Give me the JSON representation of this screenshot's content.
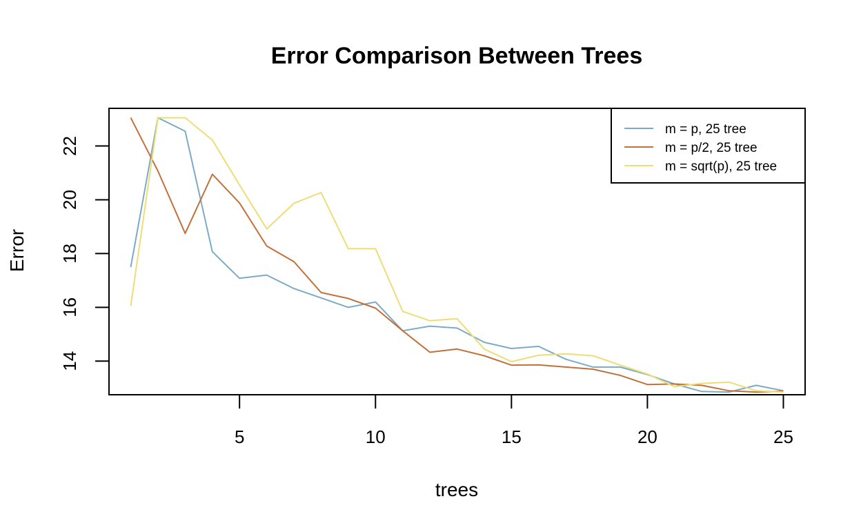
{
  "chart_data": {
    "type": "line",
    "title": "Error Comparison Between Trees",
    "xlabel": "trees",
    "ylabel": "Error",
    "xlim": [
      0.2,
      25.8
    ],
    "ylim": [
      12.75,
      23.4
    ],
    "x_ticks": [
      5,
      10,
      15,
      20,
      25
    ],
    "y_ticks": [
      14,
      16,
      18,
      20,
      22
    ],
    "grid": false,
    "legend_position": "top-right",
    "x": [
      1,
      2,
      3,
      4,
      5,
      6,
      7,
      8,
      9,
      10,
      11,
      12,
      13,
      14,
      15,
      16,
      17,
      18,
      19,
      20,
      21,
      22,
      23,
      24,
      25
    ],
    "series": [
      {
        "name": "m = p, 25 tree",
        "color": "#7BAAC7",
        "values": [
          17.5,
          23.05,
          22.55,
          18.07,
          17.08,
          17.2,
          16.7,
          16.35,
          16.0,
          16.2,
          15.13,
          15.3,
          15.23,
          14.7,
          14.47,
          14.55,
          14.07,
          13.78,
          13.78,
          13.5,
          13.15,
          12.87,
          12.85,
          13.1,
          12.9
        ]
      },
      {
        "name": "m = p/2, 25 tree",
        "color": "#C2703A",
        "values": [
          23.05,
          21.07,
          18.75,
          20.95,
          19.88,
          18.28,
          17.7,
          16.55,
          16.33,
          15.97,
          15.13,
          14.33,
          14.45,
          14.2,
          13.85,
          13.86,
          13.78,
          13.7,
          13.47,
          13.13,
          13.15,
          13.1,
          12.9,
          12.85,
          12.88
        ]
      },
      {
        "name": "m = sqrt(p), 25 tree",
        "color": "#EEDC75",
        "values": [
          16.05,
          23.05,
          23.05,
          22.22,
          20.55,
          18.92,
          19.87,
          20.27,
          18.18,
          18.18,
          15.85,
          15.5,
          15.58,
          14.45,
          13.98,
          14.22,
          14.27,
          14.2,
          13.85,
          13.52,
          13.05,
          13.17,
          13.22,
          12.9,
          12.85
        ]
      }
    ]
  }
}
